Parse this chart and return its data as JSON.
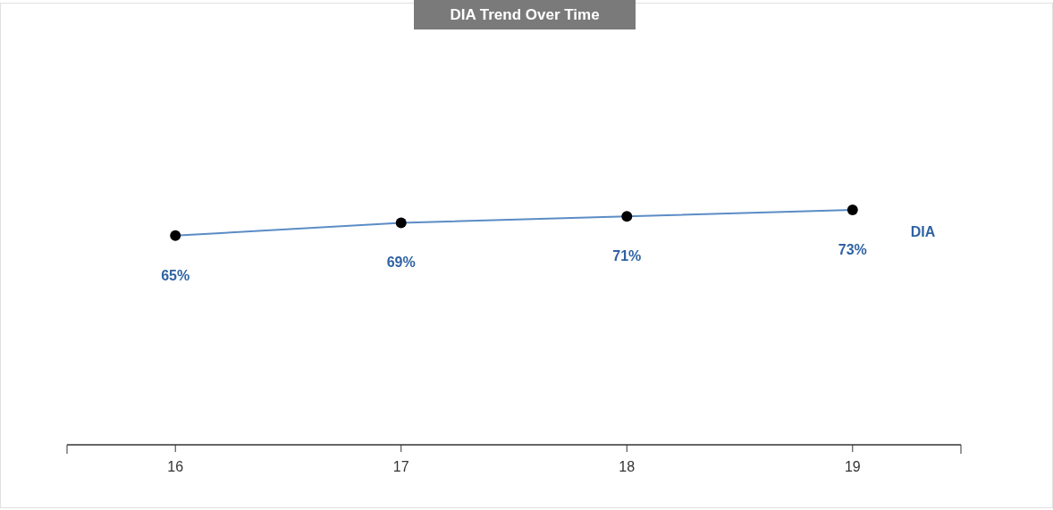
{
  "chart_data": {
    "type": "line",
    "title": "DIA Trend Over Time",
    "categories": [
      "16",
      "17",
      "18",
      "19"
    ],
    "series": [
      {
        "name": "DIA",
        "color": "#5b8cc6",
        "values": [
          65,
          69,
          71,
          73
        ],
        "value_labels": [
          "65%",
          "69%",
          "71%",
          "73%"
        ]
      }
    ],
    "marker": "circle"
  }
}
